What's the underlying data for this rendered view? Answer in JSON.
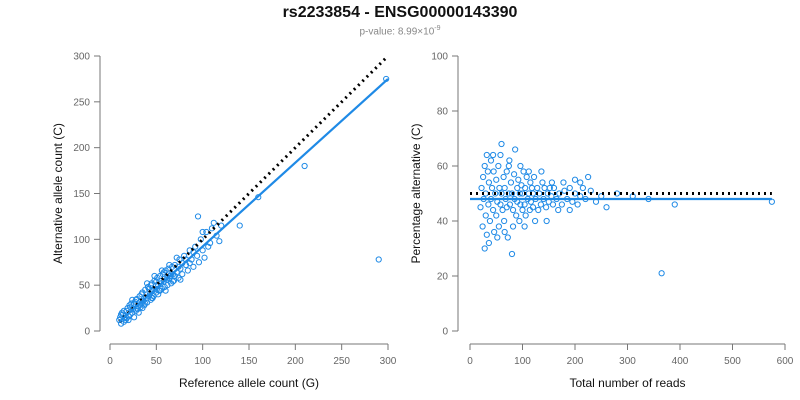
{
  "title": "rs2233854 - ENSG00000143390",
  "subtitle": {
    "prefix": "p-value: 8.99×10",
    "exponent": "-9"
  },
  "colors": {
    "points": "#1f8ae6",
    "fit_line": "#1f8ae6",
    "reference_line": "#000000",
    "axis": "#777777",
    "tick_text": "#666666"
  },
  "chart_data": [
    {
      "type": "scatter",
      "xlabel": "Reference allele count (G)",
      "ylabel": "Alternative allele count (C)",
      "xlim": [
        0,
        300
      ],
      "ylim": [
        0,
        300
      ],
      "xticks": [
        0,
        50,
        100,
        150,
        200,
        250,
        300
      ],
      "yticks": [
        0,
        50,
        100,
        150,
        200,
        250,
        300
      ],
      "reference_line": {
        "style": "dotted",
        "x": [
          10,
          300
        ],
        "y": [
          10,
          300
        ]
      },
      "fit_line": {
        "x": [
          10,
          300
        ],
        "y": [
          10,
          275
        ]
      },
      "points": [
        [
          10,
          12
        ],
        [
          12,
          8
        ],
        [
          11,
          15
        ],
        [
          14,
          18
        ],
        [
          15,
          10
        ],
        [
          13,
          20
        ],
        [
          16,
          14
        ],
        [
          18,
          22
        ],
        [
          17,
          12
        ],
        [
          20,
          16
        ],
        [
          19,
          25
        ],
        [
          22,
          18
        ],
        [
          21,
          28
        ],
        [
          24,
          20
        ],
        [
          23,
          30
        ],
        [
          25,
          24
        ],
        [
          26,
          15
        ],
        [
          27,
          32
        ],
        [
          28,
          22
        ],
        [
          29,
          35
        ],
        [
          30,
          27
        ],
        [
          31,
          20
        ],
        [
          32,
          38
        ],
        [
          33,
          26
        ],
        [
          34,
          30
        ],
        [
          35,
          42
        ],
        [
          36,
          33
        ],
        [
          37,
          28
        ],
        [
          38,
          45
        ],
        [
          39,
          36
        ],
        [
          40,
          31
        ],
        [
          41,
          48
        ],
        [
          42,
          38
        ],
        [
          43,
          40
        ],
        [
          44,
          34
        ],
        [
          45,
          52
        ],
        [
          46,
          44
        ],
        [
          47,
          38
        ],
        [
          48,
          55
        ],
        [
          49,
          46
        ],
        [
          50,
          42
        ],
        [
          51,
          58
        ],
        [
          52,
          50
        ],
        [
          53,
          44
        ],
        [
          54,
          60
        ],
        [
          55,
          52
        ],
        [
          56,
          46
        ],
        [
          57,
          62
        ],
        [
          58,
          54
        ],
        [
          59,
          48
        ],
        [
          60,
          66
        ],
        [
          61,
          56
        ],
        [
          62,
          50
        ],
        [
          63,
          68
        ],
        [
          64,
          58
        ],
        [
          65,
          60
        ],
        [
          66,
          52
        ],
        [
          67,
          70
        ],
        [
          68,
          62
        ],
        [
          69,
          55
        ],
        [
          70,
          72
        ],
        [
          72,
          64
        ],
        [
          74,
          58
        ],
        [
          75,
          78
        ],
        [
          76,
          68
        ],
        [
          78,
          62
        ],
        [
          80,
          82
        ],
        [
          82,
          72
        ],
        [
          84,
          66
        ],
        [
          86,
          88
        ],
        [
          88,
          78
        ],
        [
          90,
          70
        ],
        [
          92,
          92
        ],
        [
          94,
          82
        ],
        [
          96,
          75
        ],
        [
          98,
          100
        ],
        [
          100,
          88
        ],
        [
          102,
          80
        ],
        [
          104,
          108
        ],
        [
          106,
          92
        ],
        [
          108,
          96
        ],
        [
          110,
          112
        ],
        [
          115,
          104
        ],
        [
          118,
          98
        ],
        [
          120,
          115
        ],
        [
          95,
          125
        ],
        [
          100,
          108
        ],
        [
          112,
          118
        ],
        [
          140,
          115
        ],
        [
          160,
          146
        ],
        [
          210,
          180
        ],
        [
          290,
          78
        ],
        [
          298,
          275
        ],
        [
          12,
          18
        ],
        [
          15,
          22
        ],
        [
          18,
          14
        ],
        [
          22,
          26
        ],
        [
          26,
          30
        ],
        [
          30,
          24
        ],
        [
          34,
          40
        ],
        [
          38,
          30
        ],
        [
          42,
          46
        ],
        [
          46,
          36
        ],
        [
          50,
          54
        ],
        [
          54,
          44
        ],
        [
          58,
          64
        ],
        [
          62,
          58
        ],
        [
          66,
          62
        ],
        [
          70,
          60
        ],
        [
          74,
          70
        ],
        [
          78,
          74
        ],
        [
          82,
          78
        ],
        [
          86,
          74
        ],
        [
          90,
          86
        ],
        [
          40,
          52
        ],
        [
          45,
          36
        ],
        [
          48,
          60
        ],
        [
          52,
          40
        ],
        [
          56,
          66
        ],
        [
          60,
          44
        ],
        [
          35,
          25
        ],
        [
          28,
          34
        ],
        [
          32,
          28
        ],
        [
          44,
          50
        ],
        [
          64,
          72
        ],
        [
          68,
          54
        ],
        [
          72,
          80
        ],
        [
          76,
          56
        ],
        [
          20,
          12
        ],
        [
          24,
          34
        ]
      ]
    },
    {
      "type": "scatter",
      "xlabel": "Total number of reads",
      "ylabel": "Percentage alternative (C)",
      "xlim": [
        0,
        600
      ],
      "ylim": [
        0,
        100
      ],
      "xticks": [
        0,
        100,
        200,
        300,
        400,
        500,
        600
      ],
      "yticks": [
        0,
        20,
        40,
        60,
        80,
        100
      ],
      "reference_line": {
        "style": "dotted",
        "x": [
          0,
          575
        ],
        "y": [
          50,
          50
        ]
      },
      "fit_line": {
        "x": [
          0,
          575
        ],
        "y": [
          48,
          48
        ]
      },
      "points": [
        [
          20,
          45
        ],
        [
          22,
          52
        ],
        [
          24,
          38
        ],
        [
          25,
          56
        ],
        [
          26,
          48
        ],
        [
          28,
          60
        ],
        [
          30,
          42
        ],
        [
          30,
          50
        ],
        [
          32,
          35
        ],
        [
          34,
          58
        ],
        [
          35,
          46
        ],
        [
          36,
          54
        ],
        [
          38,
          40
        ],
        [
          40,
          62
        ],
        [
          40,
          48
        ],
        [
          42,
          52
        ],
        [
          44,
          44
        ],
        [
          45,
          58
        ],
        [
          46,
          36
        ],
        [
          48,
          50
        ],
        [
          50,
          55
        ],
        [
          50,
          42
        ],
        [
          52,
          47
        ],
        [
          54,
          60
        ],
        [
          55,
          38
        ],
        [
          56,
          52
        ],
        [
          58,
          46
        ],
        [
          60,
          68
        ],
        [
          60,
          50
        ],
        [
          62,
          44
        ],
        [
          64,
          56
        ],
        [
          65,
          40
        ],
        [
          66,
          52
        ],
        [
          68,
          48
        ],
        [
          70,
          58
        ],
        [
          70,
          45
        ],
        [
          72,
          34
        ],
        [
          74,
          50
        ],
        [
          75,
          62
        ],
        [
          76,
          46
        ],
        [
          78,
          54
        ],
        [
          80,
          28
        ],
        [
          80,
          50
        ],
        [
          82,
          44
        ],
        [
          84,
          57
        ],
        [
          85,
          48
        ],
        [
          86,
          66
        ],
        [
          88,
          42
        ],
        [
          90,
          52
        ],
        [
          90,
          47
        ],
        [
          92,
          55
        ],
        [
          94,
          40
        ],
        [
          95,
          50
        ],
        [
          96,
          46
        ],
        [
          98,
          53
        ],
        [
          100,
          44
        ],
        [
          100,
          50
        ],
        [
          102,
          58
        ],
        [
          104,
          46
        ],
        [
          105,
          52
        ],
        [
          106,
          42
        ],
        [
          108,
          56
        ],
        [
          110,
          48
        ],
        [
          112,
          50
        ],
        [
          114,
          44
        ],
        [
          115,
          54
        ],
        [
          116,
          47
        ],
        [
          118,
          52
        ],
        [
          120,
          45
        ],
        [
          120,
          50
        ],
        [
          122,
          56
        ],
        [
          125,
          48
        ],
        [
          128,
          52
        ],
        [
          130,
          44
        ],
        [
          132,
          50
        ],
        [
          135,
          46
        ],
        [
          138,
          54
        ],
        [
          140,
          48
        ],
        [
          142,
          52
        ],
        [
          145,
          45
        ],
        [
          148,
          50
        ],
        [
          150,
          47
        ],
        [
          152,
          52
        ],
        [
          155,
          49
        ],
        [
          158,
          46
        ],
        [
          160,
          52
        ],
        [
          165,
          48
        ],
        [
          170,
          50
        ],
        [
          175,
          46
        ],
        [
          180,
          51
        ],
        [
          185,
          48
        ],
        [
          190,
          52
        ],
        [
          195,
          47
        ],
        [
          200,
          50
        ],
        [
          205,
          46
        ],
        [
          210,
          49
        ],
        [
          215,
          52
        ],
        [
          220,
          48
        ],
        [
          225,
          56
        ],
        [
          230,
          51
        ],
        [
          240,
          47
        ],
        [
          250,
          49
        ],
        [
          260,
          45
        ],
        [
          280,
          50
        ],
        [
          310,
          49
        ],
        [
          340,
          48
        ],
        [
          365,
          21
        ],
        [
          390,
          46
        ],
        [
          575,
          47
        ],
        [
          200,
          55
        ],
        [
          28,
          30
        ],
        [
          32,
          64
        ],
        [
          36,
          32
        ],
        [
          44,
          64
        ],
        [
          52,
          34
        ],
        [
          58,
          64
        ],
        [
          66,
          36
        ],
        [
          74,
          60
        ],
        [
          82,
          38
        ],
        [
          96,
          60
        ],
        [
          104,
          38
        ],
        [
          112,
          58
        ],
        [
          124,
          40
        ],
        [
          136,
          58
        ],
        [
          146,
          40
        ],
        [
          156,
          54
        ],
        [
          168,
          44
        ],
        [
          178,
          54
        ],
        [
          190,
          44
        ],
        [
          210,
          54
        ]
      ]
    }
  ]
}
